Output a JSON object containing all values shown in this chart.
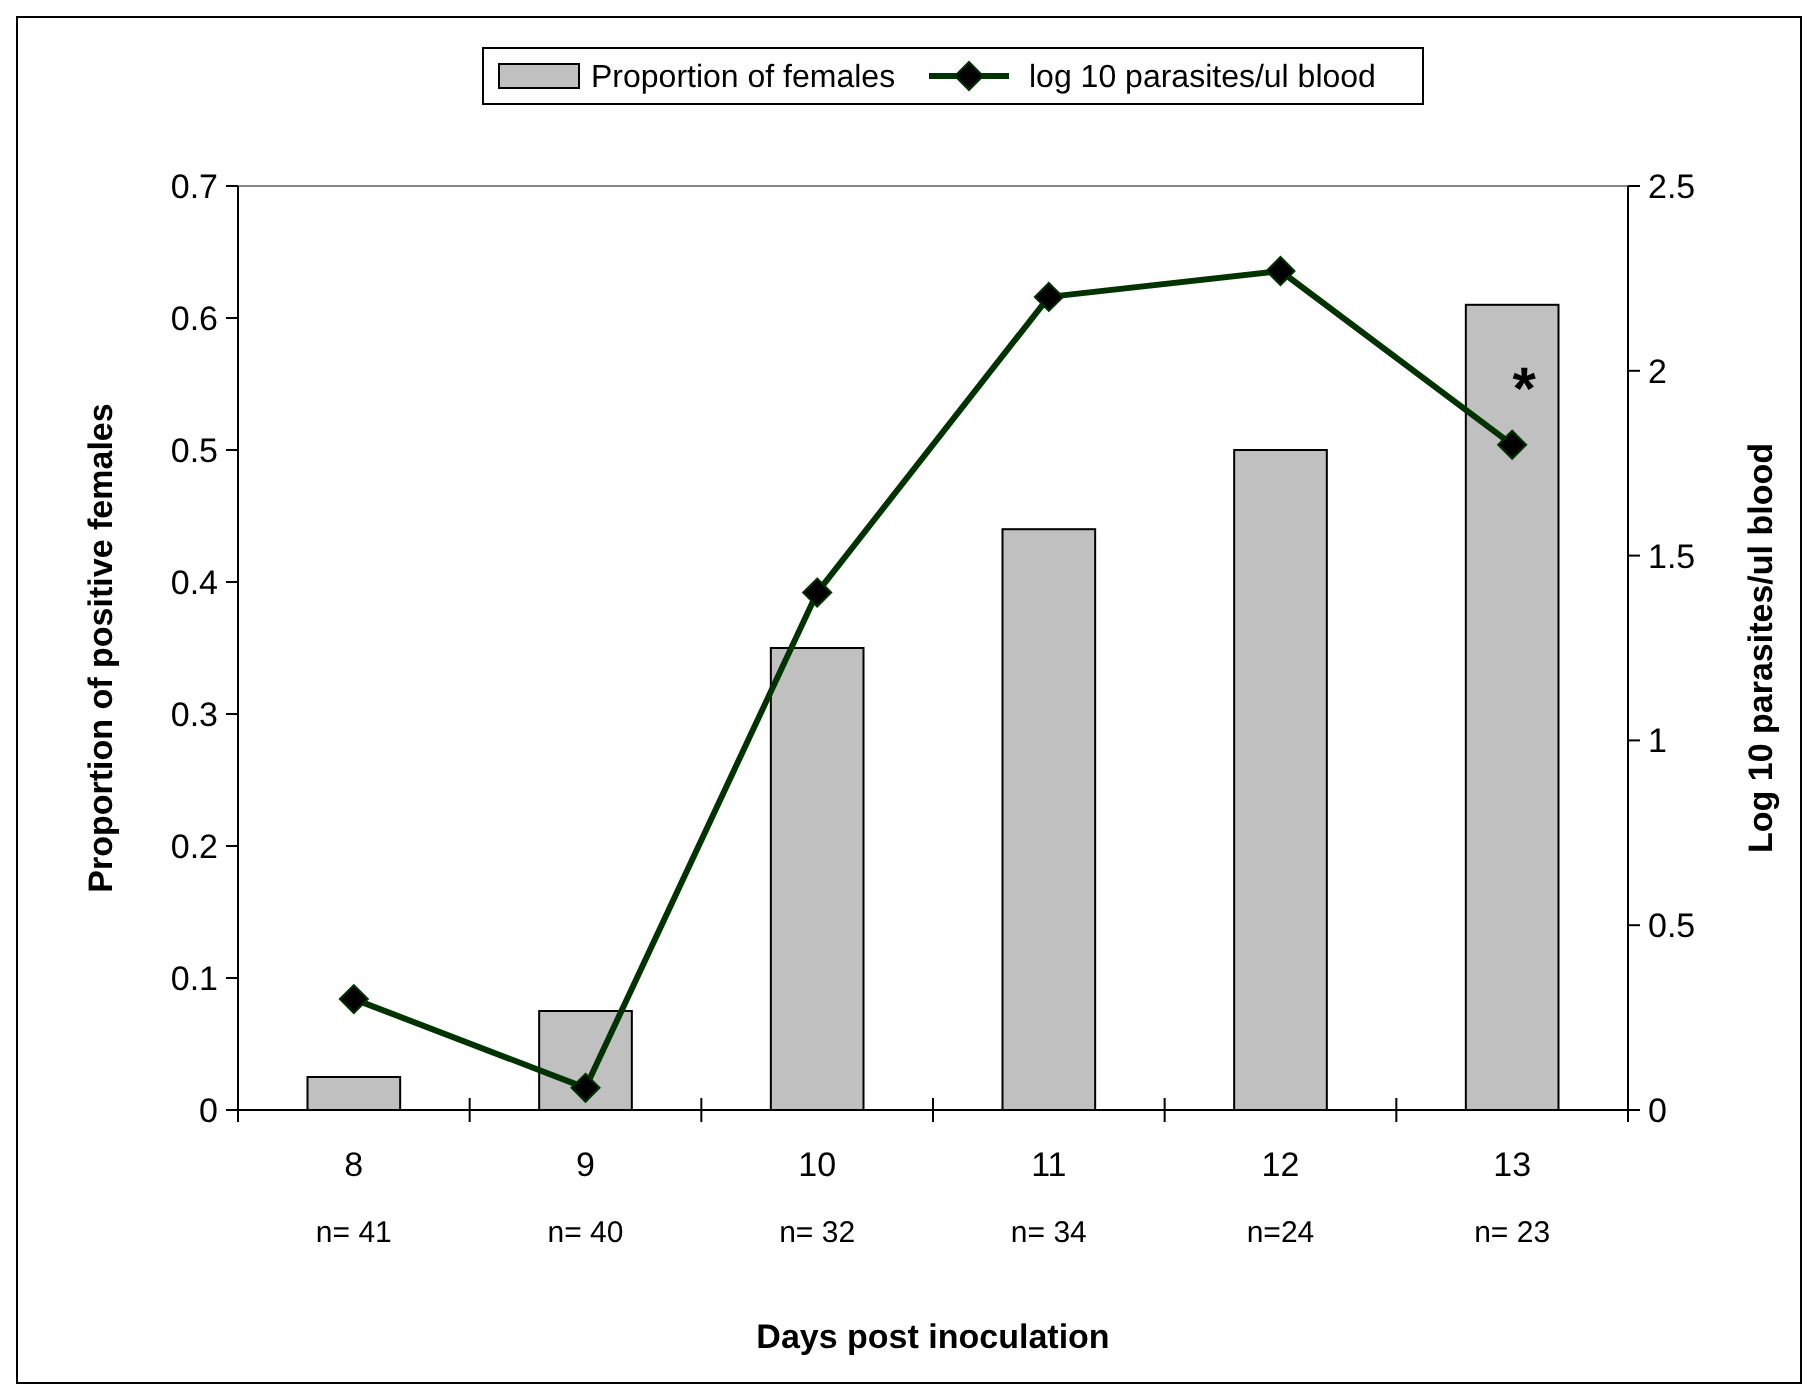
{
  "chart_data": {
    "type": "bar",
    "xlabel": "Days post inoculation",
    "ylabel": "Proportion of positive females",
    "y2label": "Log 10 parasites/ul blood",
    "categories": [
      "8",
      "9",
      "10",
      "11",
      "12",
      "13"
    ],
    "series": [
      {
        "name": "Proportion of females",
        "color": "#c0c0c0",
        "values": [
          0.025,
          0.075,
          0.35,
          0.44,
          0.5,
          0.61
        ]
      },
      {
        "name": "log 10 parasites/ul blood",
        "type": "line",
        "axis": "y2",
        "color": "#003300",
        "marker": "diamond",
        "values": [
          0.3,
          0.06,
          1.4,
          2.2,
          2.27,
          1.8
        ]
      }
    ],
    "ylim": [
      0,
      0.7
    ],
    "yticks": [
      0,
      0.1,
      0.2,
      0.3,
      0.4,
      0.5,
      0.6,
      0.7
    ],
    "y2lim": [
      0,
      2.5
    ],
    "y2ticks": [
      0,
      0.5,
      1,
      1.5,
      2,
      2.5
    ],
    "annotations": [
      "n= 41",
      "n= 40",
      "n= 32",
      "n= 34",
      "n=24",
      "n= 23",
      "*"
    ],
    "legend": "top",
    "grid": false
  }
}
